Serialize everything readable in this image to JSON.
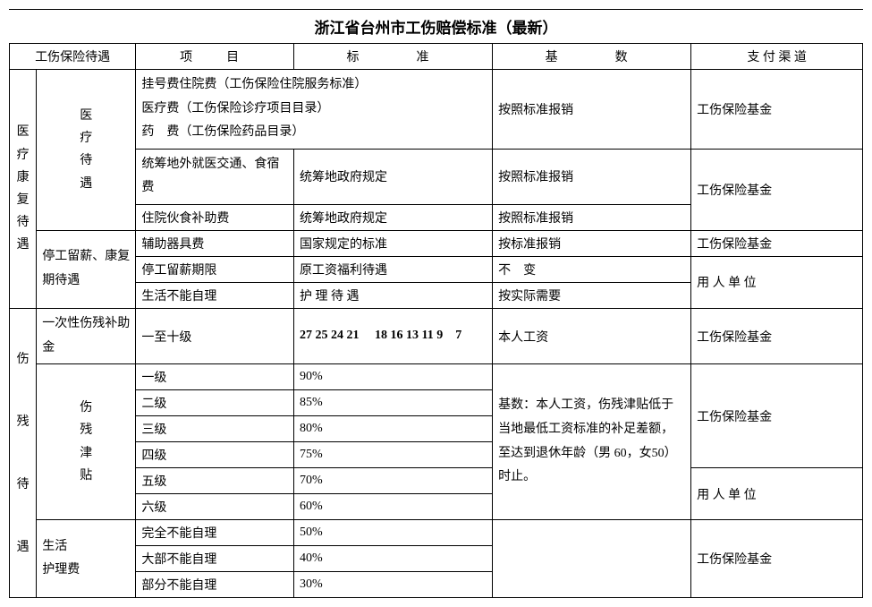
{
  "title": "浙江省台州市工伤赔偿标准（最新）",
  "headers": {
    "h0": "工伤保险待遇",
    "h1": "项　目",
    "h2": "标　　准",
    "h3": "基　　数",
    "h4": "支 付 渠 道"
  },
  "section1": {
    "label": "医\n疗\n康\n复\n待\n遇",
    "sub1": "医\n疗\n待\n遇",
    "sub2": "停工留薪、康复期待遇",
    "r1_project": "挂号费住院费（工伤保险住院服务标准）\n医疗费（工伤保险诊疗项目目录）\n药　费（工伤保险药品目录）",
    "r1_base": "按照标准报销",
    "r1_pay": "工伤保险基金",
    "r2_project": "统筹地外就医交通、食宿费",
    "r2_standard": "统筹地政府规定",
    "r2_base": "按照标准报销",
    "r23_pay": "工伤保险基金",
    "r3_project": "住院伙食补助费",
    "r3_standard": "统筹地政府规定",
    "r3_base": "按照标准报销",
    "r4_project": "辅助器具费",
    "r4_standard": "国家规定的标准",
    "r4_base": "按标准报销",
    "r4_pay": "工伤保险基金",
    "r5_project": "停工留薪期限",
    "r5_standard": "原工资福利待遇",
    "r5_base": "不　变",
    "r56_pay": "用 人 单 位",
    "r6_project": "生活不能自理",
    "r6_standard": "护 理 待 遇",
    "r6_base": "按实际需要"
  },
  "section2": {
    "label": "伤\n\n残\n\n待\n\n遇",
    "sub1": "一次性伤残补助金",
    "sub2": "伤\n残\n津\n贴",
    "sub3": "生活\n护理费",
    "r7_project": "一至十级",
    "r7_standard": "27 25 24 21　 18 16 13 11 9　7",
    "r7_base": "本人工资",
    "r7_pay": "工伤保险基金",
    "r8_project": "一级",
    "r8_standard": "90%",
    "r8_13_base": "基数：本人工资，伤残津贴低于当地最低工资标准的补足差额，至达到退休年龄（男 60，女50）时止。",
    "r8_11_pay": "工伤保险基金",
    "r9_project": "二级",
    "r9_standard": "85%",
    "r10_project": "三级",
    "r10_standard": "80%",
    "r11_project": "四级",
    "r11_standard": "75%",
    "r12_project": "五级",
    "r12_standard": "70%",
    "r12_13_pay": "用 人 单 位",
    "r13_project": "六级",
    "r13_standard": "60%",
    "r14_project": "完全不能自理",
    "r14_standard": "50%",
    "r14_base": "",
    "r14_16_pay": "工伤保险基金",
    "r15_project": "大部不能自理",
    "r15_standard": "40%",
    "r16_project": "部分不能自理",
    "r16_standard": "30%"
  }
}
